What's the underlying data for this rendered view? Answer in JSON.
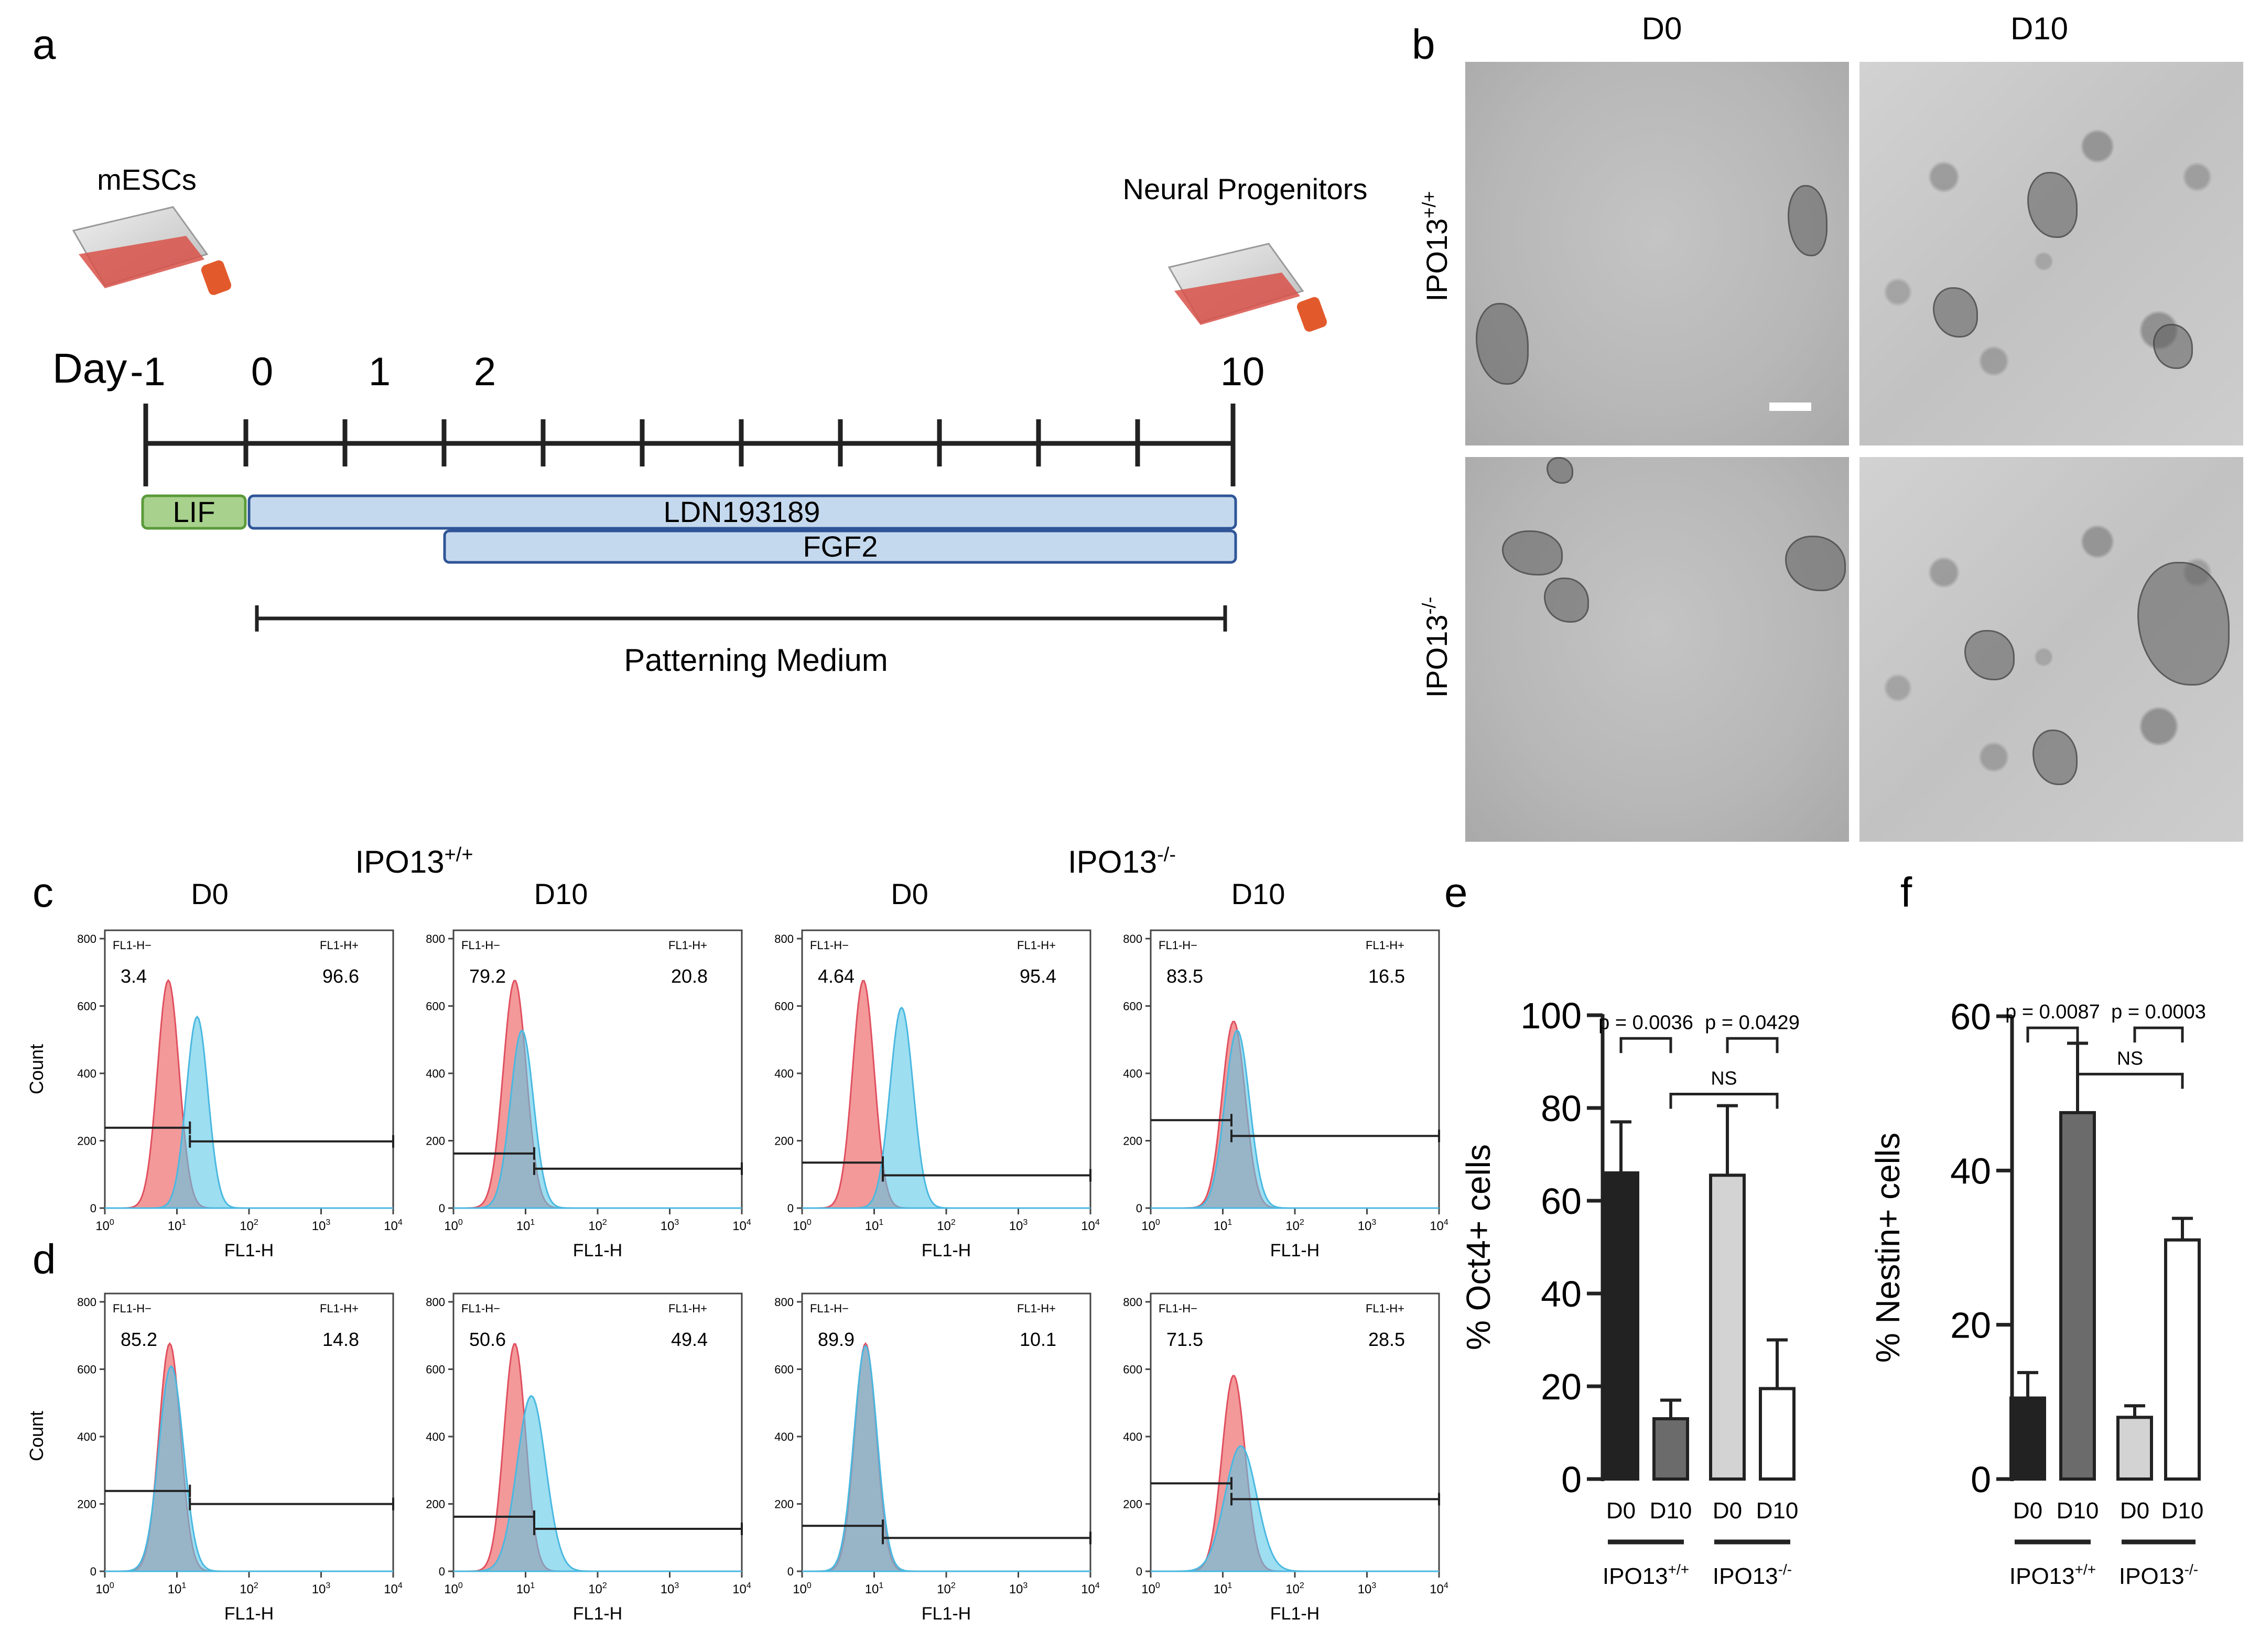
{
  "panel_labels": {
    "a": "a",
    "b": "b",
    "c": "c",
    "d": "d",
    "e": "e",
    "f": "f"
  },
  "schematic": {
    "left_flask_label": "mESCs",
    "right_flask_label": "Neural Progenitors",
    "day_label": "Day",
    "day_ticks": [
      "-1",
      "0",
      "1",
      "2",
      "10"
    ],
    "bars": [
      {
        "label": "LIF",
        "color": "#a9d18e",
        "border": "#5a9a3a"
      },
      {
        "label": "LDN193189",
        "color": "#c5d9ee",
        "border": "#2f5597"
      },
      {
        "label": "FGF2",
        "color": "#c5d9ee",
        "border": "#2f5597"
      }
    ],
    "range_label": "Patterning Medium"
  },
  "micrographs": {
    "col_labels": [
      "D0",
      "D10"
    ],
    "row_labels": [
      {
        "base": "IPO13",
        "sup": "+/+"
      },
      {
        "base": "IPO13",
        "sup": "-/-"
      }
    ]
  },
  "flow": {
    "group_labels": [
      {
        "base": "IPO13",
        "sup": "+/+"
      },
      {
        "base": "IPO13",
        "sup": "-/-"
      }
    ],
    "col_titles": [
      "D0",
      "D10",
      "D0",
      "D10"
    ],
    "y_axis_label": "Count",
    "x_axis_label": "FL1-H",
    "y_ticks": [
      "0",
      "200",
      "400",
      "600",
      "800"
    ],
    "x_tick_base": "10",
    "x_tick_exps": [
      "0",
      "1",
      "2",
      "3",
      "4"
    ],
    "gate_neg_label": "FL1-H−",
    "gate_pos_label": "FL1-H+",
    "colors": {
      "control": "#f08080",
      "sample": "#5bc8e8",
      "overlap": "#7f9db5"
    },
    "row_c": [
      {
        "neg": "3.4",
        "pos": "96.6"
      },
      {
        "neg": "79.2",
        "pos": "20.8"
      },
      {
        "neg": "4.64",
        "pos": "95.4"
      },
      {
        "neg": "83.5",
        "pos": "16.5"
      }
    ],
    "row_d": [
      {
        "neg": "85.2",
        "pos": "14.8"
      },
      {
        "neg": "50.6",
        "pos": "49.4"
      },
      {
        "neg": "89.9",
        "pos": "10.1"
      },
      {
        "neg": "71.5",
        "pos": "28.5"
      }
    ]
  },
  "chart_data": [
    {
      "type": "bar",
      "panel": "e",
      "title": "",
      "ylabel": "% Oct4+ cells",
      "xlabel": "",
      "categories": [
        "D0",
        "D10",
        "D0",
        "D10"
      ],
      "groups": [
        {
          "base": "IPO13",
          "sup": "+/+"
        },
        {
          "base": "IPO13",
          "sup": "-/-"
        }
      ],
      "values": [
        66,
        13,
        65.5,
        19.5
      ],
      "errors": [
        11,
        4,
        15,
        10.5
      ],
      "bar_colors": [
        "#222222",
        "#6b6b6b",
        "#d3d3d3",
        "#ffffff"
      ],
      "ylim": [
        0,
        100
      ],
      "yticks": [
        "0",
        "20",
        "40",
        "60",
        "80",
        "100"
      ],
      "comparisons": [
        {
          "a": 0,
          "b": 1,
          "label": "p = 0.0036"
        },
        {
          "a": 2,
          "b": 3,
          "label": "p = 0.0429"
        },
        {
          "a": 1,
          "b": 3,
          "label": "NS"
        }
      ]
    },
    {
      "type": "bar",
      "panel": "f",
      "title": "",
      "ylabel": "% Nestin+ cells",
      "xlabel": "",
      "categories": [
        "D0",
        "D10",
        "D0",
        "D10"
      ],
      "groups": [
        {
          "base": "IPO13",
          "sup": "+/+"
        },
        {
          "base": "IPO13",
          "sup": "-/-"
        }
      ],
      "values": [
        10.5,
        47.5,
        8,
        31
      ],
      "errors": [
        3.3,
        9,
        1.5,
        2.8
      ],
      "bar_colors": [
        "#222222",
        "#6b6b6b",
        "#d3d3d3",
        "#ffffff"
      ],
      "ylim": [
        0,
        60
      ],
      "yticks": [
        "0",
        "20",
        "40",
        "60"
      ],
      "comparisons": [
        {
          "a": 0,
          "b": 1,
          "label": "p = 0.0087"
        },
        {
          "a": 2,
          "b": 3,
          "label": "p = 0.0003"
        },
        {
          "a": 1,
          "b": 3,
          "label": "NS"
        }
      ]
    }
  ]
}
